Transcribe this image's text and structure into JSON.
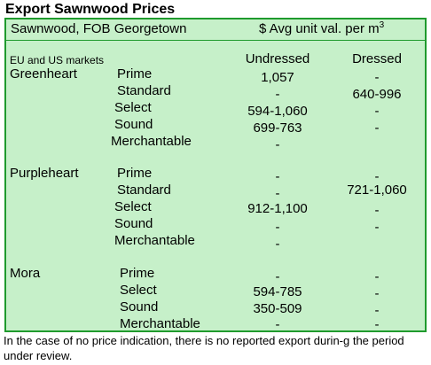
{
  "title": "Export Sawnwood Prices",
  "header": {
    "left": "Sawnwood, FOB Georgetown",
    "right": "$ Avg unit val. per m",
    "right_sup": "3"
  },
  "market_label": "EU and US markets",
  "columns": {
    "undressed": "Undressed",
    "dressed": "Dressed"
  },
  "species": [
    {
      "name": "Greenheart",
      "rows": [
        {
          "grade": "Prime",
          "undressed": "1,057",
          "dressed": "-"
        },
        {
          "grade": "Standard",
          "undressed": "-",
          "dressed": "640-996"
        },
        {
          "grade": "Select",
          "undressed": "594-1,060",
          "dressed": "-"
        },
        {
          "grade": "Sound",
          "undressed": "699-763",
          "dressed": "-"
        },
        {
          "grade": "Merchantable",
          "undressed": "-",
          "dressed": ""
        }
      ]
    },
    {
      "name": "Purpleheart",
      "rows": [
        {
          "grade": "Prime",
          "undressed": "-",
          "dressed": "-"
        },
        {
          "grade": "Standard",
          "undressed": "-",
          "dressed": "721-1,060"
        },
        {
          "grade": "Select",
          "undressed": "912-1,100",
          "dressed": "-"
        },
        {
          "grade": "Sound",
          "undressed": "-",
          "dressed": "-"
        },
        {
          "grade": "Merchantable",
          "undressed": "-",
          "dressed": ""
        }
      ]
    },
    {
      "name": "Mora",
      "rows": [
        {
          "grade": "Prime",
          "undressed": "-",
          "dressed": "-"
        },
        {
          "grade": "Select",
          "undressed": "594-785",
          "dressed": "-"
        },
        {
          "grade": "Sound",
          "undressed": "350-509",
          "dressed": "-"
        },
        {
          "grade": "Merchantable",
          "undressed": "-",
          "dressed": "-"
        }
      ]
    }
  ],
  "footnote": "In the case of no price indication, there is no reported export durin-g the period under review."
}
